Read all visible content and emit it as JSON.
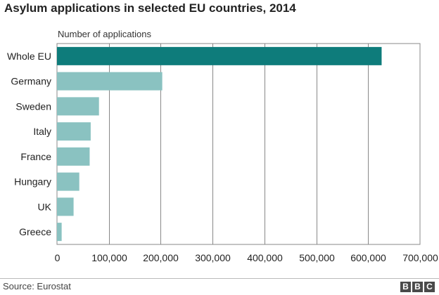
{
  "chart_data": {
    "type": "bar",
    "orientation": "horizontal",
    "title": "Asylum applications in selected EU countries, 2014",
    "xlabel": "Number of applications",
    "categories": [
      "Whole EU",
      "Germany",
      "Sweden",
      "Italy",
      "France",
      "Hungary",
      "UK",
      "Greece"
    ],
    "values": [
      626000,
      203000,
      81000,
      65000,
      63000,
      43000,
      32000,
      9000
    ],
    "xlim": [
      0,
      700000
    ],
    "ticks": [
      0,
      100000,
      200000,
      300000,
      400000,
      500000,
      600000,
      700000
    ],
    "tick_labels": [
      "0",
      "100,000",
      "200,000",
      "300,000",
      "400,000",
      "500,000",
      "600,000",
      "700,000"
    ],
    "grid": true,
    "colors": {
      "highlight": "#0e7c7b",
      "default": "#8ac2c1"
    },
    "highlight_index": 0
  },
  "footer": {
    "source": "Source: Eurostat",
    "logo": [
      "B",
      "B",
      "C"
    ]
  }
}
